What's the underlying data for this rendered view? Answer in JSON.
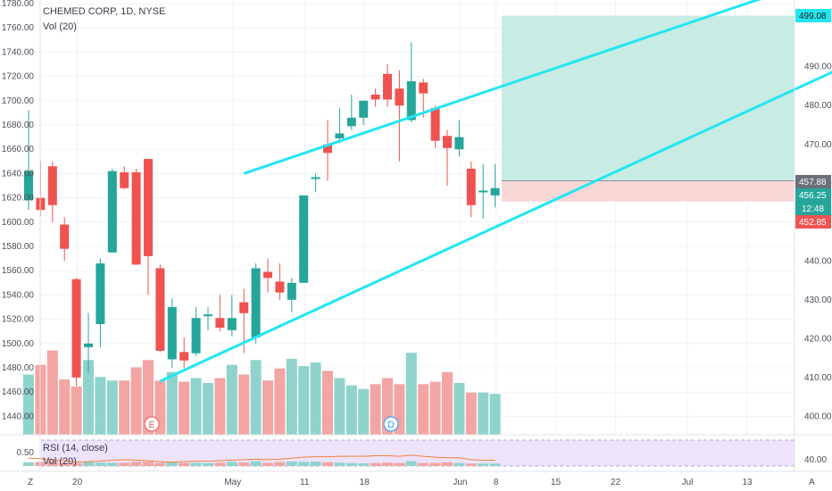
{
  "header": {
    "symbol_line": "CHEMED CORP, 1D, NYSE",
    "volume_label": "Vol (20)"
  },
  "rsi_pane": {
    "label": "RSI (14, close)",
    "volume_label": "Vol (20)",
    "level_label": "0.50",
    "right_label": "40.00"
  },
  "bottom_bar": {
    "left_letter": "Z",
    "right_letter": "A"
  },
  "markers": {
    "earnings": "E",
    "dividend": "D"
  },
  "colors": {
    "up": "#26a69a",
    "down": "#ef5350",
    "up_volume": "#8fd3cc",
    "down_volume": "#f3a5a3",
    "channel": "#22e6f2",
    "profit_zone": "#c8ebe4",
    "loss_zone": "#f8d7d7",
    "rsi_line": "#f0813a",
    "rsi_band": "#ede3fb"
  },
  "price_badges": {
    "target": "499.08",
    "current_gray": "457.88",
    "current_green": "456.25",
    "countdown": "12:48",
    "stop": "452.85"
  },
  "chart_data": {
    "type": "candlestick",
    "left_axis": {
      "ticks": [
        "1780.00",
        "1760.00",
        "1740.00",
        "1720.00",
        "1700.00",
        "1680.00",
        "1660.00",
        "1640.00",
        "1620.00",
        "1600.00",
        "1580.00",
        "1560.00",
        "1540.00",
        "1520.00",
        "1500.00",
        "1480.00",
        "1460.00",
        "1440.00"
      ]
    },
    "right_axis": {
      "ticks": [
        "490.00",
        "480.00",
        "470.00",
        "460.00",
        "450.00",
        "440.00",
        "430.00",
        "420.00",
        "410.00",
        "400.00"
      ]
    },
    "x_ticks": [
      "20",
      "May",
      "11",
      "18",
      "Jun",
      "8",
      "15",
      "22",
      "Jul",
      "13"
    ],
    "candles": [
      {
        "o": 1618,
        "h": 1692,
        "l": 1610,
        "c": 1642
      },
      {
        "o": 1620,
        "h": 1650,
        "l": 1605,
        "c": 1610
      },
      {
        "o": 1646,
        "h": 1650,
        "l": 1600,
        "c": 1614
      },
      {
        "o": 1598,
        "h": 1604,
        "l": 1568,
        "c": 1578
      },
      {
        "o": 1553,
        "h": 1554,
        "l": 1465,
        "c": 1472
      },
      {
        "o": 1497,
        "h": 1525,
        "l": 1476,
        "c": 1500
      },
      {
        "o": 1516,
        "h": 1570,
        "l": 1497,
        "c": 1566
      },
      {
        "o": 1575,
        "h": 1644,
        "l": 1575,
        "c": 1642
      },
      {
        "o": 1641,
        "h": 1646,
        "l": 1627,
        "c": 1628
      },
      {
        "o": 1641,
        "h": 1644,
        "l": 1565,
        "c": 1565
      },
      {
        "o": 1652,
        "h": 1652,
        "l": 1540,
        "c": 1572
      },
      {
        "o": 1562,
        "h": 1565,
        "l": 1493,
        "c": 1494
      },
      {
        "o": 1487,
        "h": 1537,
        "l": 1480,
        "c": 1530
      },
      {
        "o": 1493,
        "h": 1505,
        "l": 1480,
        "c": 1486
      },
      {
        "o": 1492,
        "h": 1530,
        "l": 1490,
        "c": 1521
      },
      {
        "o": 1524,
        "h": 1530,
        "l": 1511,
        "c": 1524
      },
      {
        "o": 1521,
        "h": 1540,
        "l": 1510,
        "c": 1513
      },
      {
        "o": 1511,
        "h": 1540,
        "l": 1506,
        "c": 1521
      },
      {
        "o": 1534,
        "h": 1545,
        "l": 1492,
        "c": 1525
      },
      {
        "o": 1505,
        "h": 1566,
        "l": 1500,
        "c": 1562
      },
      {
        "o": 1559,
        "h": 1570,
        "l": 1542,
        "c": 1554
      },
      {
        "o": 1551,
        "h": 1566,
        "l": 1536,
        "c": 1542
      },
      {
        "o": 1536,
        "h": 1554,
        "l": 1526,
        "c": 1550
      },
      {
        "o": 1550,
        "h": 1622,
        "l": 1550,
        "c": 1622
      },
      {
        "o": 1636,
        "h": 1640,
        "l": 1625,
        "c": 1637
      },
      {
        "o": 1664,
        "h": 1684,
        "l": 1634,
        "c": 1657
      },
      {
        "o": 1669,
        "h": 1694,
        "l": 1665,
        "c": 1673
      },
      {
        "o": 1679,
        "h": 1705,
        "l": 1676,
        "c": 1686
      },
      {
        "o": 1686,
        "h": 1700,
        "l": 1680,
        "c": 1700
      },
      {
        "o": 1705,
        "h": 1710,
        "l": 1695,
        "c": 1701
      },
      {
        "o": 1722,
        "h": 1730,
        "l": 1695,
        "c": 1701
      },
      {
        "o": 1710,
        "h": 1725,
        "l": 1650,
        "c": 1696
      },
      {
        "o": 1684,
        "h": 1748,
        "l": 1682,
        "c": 1716
      },
      {
        "o": 1715,
        "h": 1718,
        "l": 1686,
        "c": 1706
      },
      {
        "o": 1694,
        "h": 1696,
        "l": 1661,
        "c": 1667
      },
      {
        "o": 1671,
        "h": 1676,
        "l": 1630,
        "c": 1661
      },
      {
        "o": 1660,
        "h": 1684,
        "l": 1654,
        "c": 1670
      },
      {
        "o": 1644,
        "h": 1650,
        "l": 1604,
        "c": 1614
      },
      {
        "o": 1625,
        "h": 1648,
        "l": 1603,
        "c": 1626
      },
      {
        "o": 1622,
        "h": 1648,
        "l": 1612,
        "c": 1628
      }
    ],
    "volume": [
      50,
      58,
      70,
      46,
      40,
      62,
      48,
      45,
      45,
      56,
      62,
      45,
      52,
      44,
      47,
      43,
      47,
      58,
      50,
      62,
      45,
      55,
      63,
      57,
      60,
      53,
      47,
      41,
      38,
      42,
      47,
      42,
      68,
      42,
      44,
      52,
      43,
      35,
      35,
      34
    ],
    "rsi": [
      55,
      54,
      52,
      50,
      47,
      48,
      49,
      51,
      52,
      51,
      50,
      48,
      47,
      48,
      49,
      49,
      50,
      51,
      52,
      53,
      52,
      53,
      55,
      57,
      58,
      58,
      59,
      59,
      59,
      60,
      60,
      59,
      61,
      59,
      57,
      56,
      56,
      52,
      51,
      51
    ],
    "channel_upper": [
      {
        "x": 18,
        "y": 1640
      },
      {
        "x": 63,
        "y": 1790
      }
    ],
    "channel_lower": [
      {
        "x": 11,
        "y": 1469
      },
      {
        "x": 79,
        "y": 1777
      }
    ],
    "position_zones": {
      "profit": {
        "from": 1634,
        "to": 1770
      },
      "loss": {
        "from": 1617,
        "to": 1634
      }
    }
  }
}
